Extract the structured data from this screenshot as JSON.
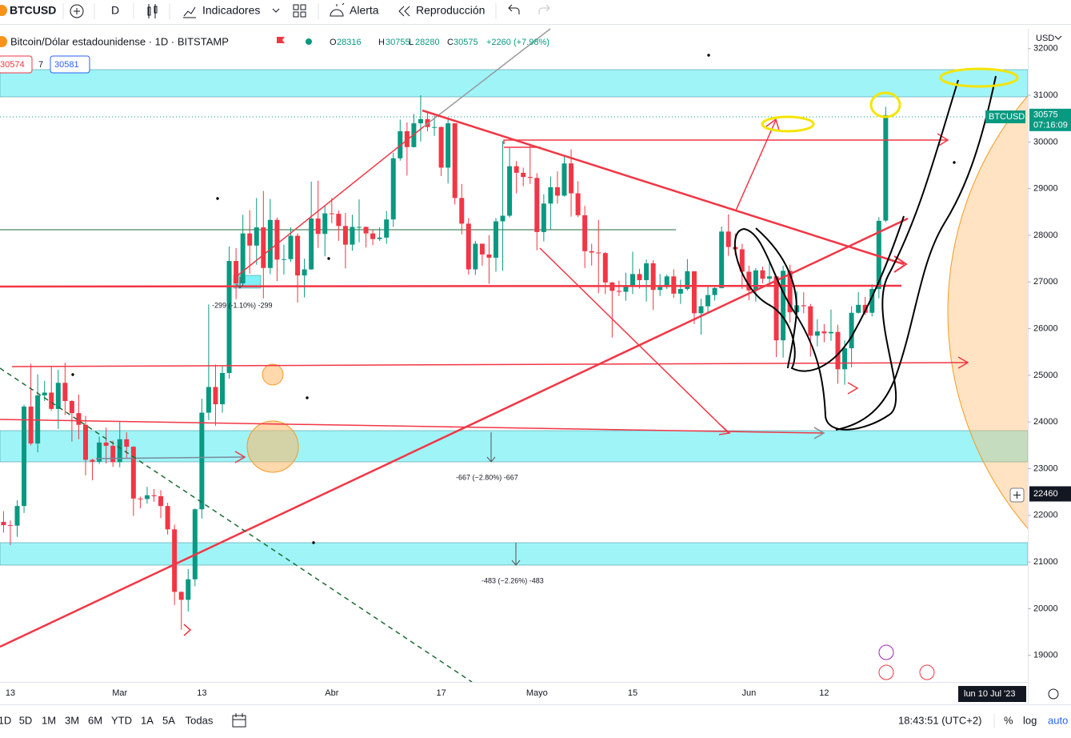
{
  "toolbar": {
    "symbol": "BTCUSD",
    "interval": "D",
    "indicators": "Indicadores",
    "alert": "Alerta",
    "replay": "Reproducción"
  },
  "legend": {
    "title": "Bitcoin/Dólar estadounidense · 1D · BITSTAMP",
    "open_label": "O",
    "high_label": "H",
    "low_label": "L",
    "close_label": "C",
    "change": "+2260 (+7.98%)",
    "bid": 30574,
    "spread": 7,
    "ask": 30581
  },
  "chart_data": {
    "type": "candlestick",
    "currency": "USD",
    "last_symbol": "BTCUSD",
    "countdown": "07:16:09",
    "up_color": "#089981",
    "down_color": "#f23645",
    "ylim": [
      18430,
      32390
    ],
    "yticks": [
      19000,
      20000,
      21000,
      22000,
      23000,
      24000,
      25000,
      26000,
      27000,
      28000,
      29000,
      30000,
      31000,
      32000
    ],
    "categories": [
      null,
      "13",
      null,
      null,
      null,
      null,
      null,
      null,
      null,
      null,
      null,
      null,
      null,
      null,
      null,
      null,
      null,
      "Mar",
      null,
      null,
      null,
      null,
      null,
      null,
      null,
      null,
      null,
      null,
      null,
      "13",
      null,
      null,
      null,
      null,
      null,
      null,
      null,
      null,
      null,
      null,
      null,
      null,
      null,
      null,
      null,
      null,
      null,
      null,
      "Abr",
      null,
      null,
      null,
      null,
      null,
      null,
      null,
      null,
      null,
      null,
      null,
      null,
      null,
      null,
      null,
      "17",
      null,
      null,
      null,
      null,
      null,
      null,
      null,
      null,
      null,
      null,
      null,
      null,
      null,
      "Mayo",
      null,
      null,
      null,
      null,
      null,
      null,
      null,
      null,
      null,
      null,
      null,
      null,
      null,
      "15",
      null,
      null,
      null,
      null,
      null,
      null,
      null,
      null,
      null,
      null,
      null,
      null,
      null,
      null,
      null,
      null,
      "Jun",
      null,
      null,
      null,
      null,
      null,
      null,
      null,
      null,
      null,
      null,
      "12",
      null,
      null,
      null,
      null,
      null,
      null,
      null,
      null,
      null
    ],
    "open": [
      21860,
      21790,
      21780,
      22200,
      24330,
      23540,
      24570,
      24630,
      24280,
      24840,
      24450,
      24190,
      23940,
      23190,
      23150,
      23560,
      23490,
      23140,
      23630,
      23470,
      22360,
      22350,
      22430,
      22410,
      22200,
      21700,
      20360,
      20190,
      20630,
      22130,
      24200,
      24750,
      24380,
      25050,
      27450,
      26970,
      28040,
      27780,
      28170,
      27300,
      28330,
      27480,
      27490,
      27990,
      27140,
      27270,
      28360,
      28030,
      28470,
      28460,
      28200,
      27800,
      28180,
      28180,
      28040,
      27920,
      27950,
      28340,
      29650,
      30230,
      29890,
      30400,
      30490,
      30320,
      30320,
      29450,
      30400,
      28800,
      28250,
      27270,
      27820,
      27590,
      27520,
      28300,
      28420,
      29480,
      29340,
      29250,
      29230,
      28070,
      28680,
      29030,
      28850,
      29540,
      28900,
      28430,
      27660,
      27630,
      27620,
      26990,
      26810,
      26790,
      26930,
      27170,
      27040,
      27400,
      26830,
      26890,
      27120,
      26750,
      26850,
      27230,
      26330,
      26480,
      26720,
      26870,
      28080,
      27750,
      27700,
      27220,
      26820,
      27250,
      27070,
      27120,
      25750,
      27240,
      26350,
      26500,
      26480,
      25850,
      25940,
      25900,
      25930,
      25130,
      25580,
      26340,
      26510,
      26340,
      26850,
      28316
    ],
    "high": [
      22090,
      21890,
      22320,
      24370,
      25250,
      25020,
      24880,
      25180,
      25120,
      25270,
      24470,
      24590,
      24130,
      23210,
      23690,
      23880,
      23600,
      24000,
      23780,
      23480,
      22400,
      22610,
      22560,
      22540,
      22270,
      21800,
      20370,
      20850,
      22150,
      24500,
      26520,
      25230,
      25200,
      27760,
      27730,
      28440,
      28540,
      28800,
      28950,
      28780,
      28380,
      27800,
      28170,
      28040,
      27500,
      29150,
      29170,
      28640,
      28800,
      28530,
      28480,
      28440,
      28770,
      28190,
      28110,
      28170,
      28520,
      29770,
      30480,
      30420,
      30600,
      31000,
      30620,
      30560,
      30330,
      30480,
      30400,
      29100,
      28370,
      27880,
      27820,
      28000,
      28370,
      30020,
      29890,
      29590,
      29450,
      29960,
      29330,
      28880,
      29260,
      29370,
      29680,
      29840,
      29160,
      28630,
      27820,
      28330,
      27640,
      27000,
      27030,
      27200,
      27650,
      27280,
      27480,
      27470,
      27170,
      27160,
      27270,
      27050,
      27490,
      27230,
      26640,
      26930,
      26890,
      28190,
      28450,
      28040,
      27820,
      27350,
      27300,
      27330,
      27440,
      27120,
      27350,
      27370,
      26800,
      26780,
      26530,
      26200,
      26100,
      26410,
      26080,
      25750,
      26480,
      26780,
      26680,
      26950,
      28390,
      30755
    ],
    "low": [
      21630,
      21360,
      21540,
      22050,
      23500,
      23350,
      24450,
      24240,
      23850,
      24150,
      23580,
      23630,
      22860,
      22750,
      23100,
      23110,
      23040,
      23030,
      23230,
      21990,
      22150,
      22250,
      22290,
      21940,
      21590,
      20080,
      19550,
      19940,
      20480,
      21930,
      24040,
      23920,
      24200,
      24930,
      26630,
      26900,
      27180,
      27370,
      26650,
      27170,
      27020,
      27160,
      27430,
      26560,
      26670,
      27260,
      27730,
      27550,
      28260,
      27880,
      27290,
      27670,
      27850,
      27740,
      27790,
      27880,
      27820,
      28180,
      29600,
      29280,
      29880,
      30010,
      30230,
      30130,
      29270,
      29110,
      28660,
      28020,
      27160,
      27150,
      27350,
      26960,
      27220,
      27240,
      28380,
      28900,
      29050,
      29100,
      27680,
      27870,
      28130,
      28680,
      28830,
      28400,
      28390,
      27300,
      27350,
      26760,
      26740,
      25810,
      26700,
      26600,
      26740,
      26860,
      26580,
      26400,
      26700,
      26850,
      26660,
      26530,
      26820,
      26100,
      25870,
      26340,
      26600,
      26860,
      27560,
      27570,
      26850,
      26610,
      26580,
      26970,
      26970,
      25390,
      25380,
      26130,
      26220,
      26330,
      25400,
      25620,
      25710,
      25740,
      24820,
      24800,
      25170,
      26320,
      26290,
      26260,
      26650,
      28280
    ],
    "close": [
      21790,
      21780,
      22200,
      24330,
      23540,
      24570,
      24630,
      24280,
      24840,
      24450,
      24190,
      23940,
      23190,
      23150,
      23560,
      23490,
      23140,
      23630,
      23470,
      22360,
      22350,
      22430,
      22410,
      22200,
      21700,
      20360,
      20190,
      20630,
      22130,
      24200,
      24750,
      24380,
      25050,
      27450,
      26970,
      28040,
      27780,
      28170,
      27300,
      28330,
      27480,
      27490,
      27990,
      27140,
      27270,
      28360,
      28030,
      28470,
      28460,
      28200,
      27800,
      28180,
      28180,
      28040,
      27920,
      27950,
      28340,
      29650,
      30230,
      29890,
      30400,
      30490,
      30320,
      30320,
      29450,
      30400,
      28800,
      28250,
      27270,
      27820,
      27590,
      27520,
      28300,
      28420,
      29480,
      29340,
      29250,
      29230,
      28070,
      28680,
      29030,
      28850,
      29540,
      28900,
      28430,
      27660,
      27630,
      27620,
      26990,
      26810,
      26790,
      26930,
      27170,
      27040,
      27400,
      26830,
      26890,
      27120,
      26750,
      26850,
      27230,
      26330,
      26480,
      26720,
      26870,
      28080,
      27750,
      27700,
      27220,
      26820,
      27250,
      27070,
      27120,
      25750,
      27240,
      26350,
      26500,
      26480,
      25850,
      25940,
      25900,
      25930,
      25130,
      25580,
      26340,
      26510,
      26340,
      26850,
      28310,
      30575
    ]
  },
  "crosshair": {
    "price": 22460,
    "date": "lun 10 Jul '23"
  },
  "measures": [
    "-299 (-1.10%) -299",
    "-667 (−2.80%) -667",
    "-483 (−2.26%) -483"
  ],
  "bottom_bar": {
    "ranges": [
      "1D",
      "5D",
      "1M",
      "3M",
      "6M",
      "YTD",
      "1A",
      "5A",
      "Todas"
    ],
    "clock": "18:43:51 (UTC+2)",
    "percent": "%",
    "log": "log",
    "auto": "auto"
  }
}
